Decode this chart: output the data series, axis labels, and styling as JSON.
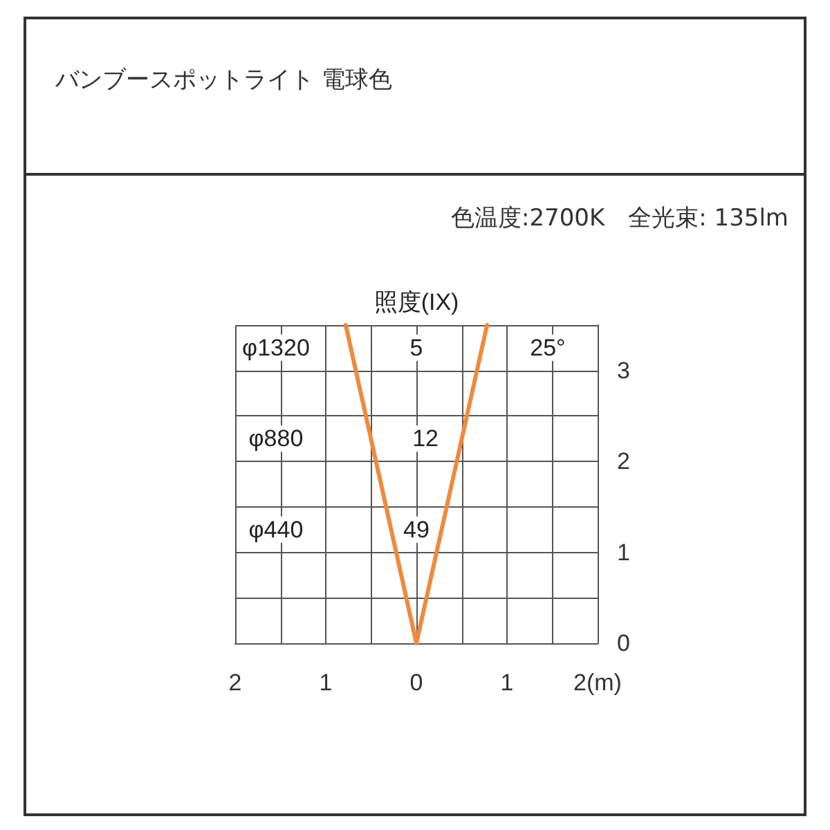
{
  "chart_data": {
    "type": "line",
    "title": "バンブースポットライト 電球色",
    "subtitle": "色温度:2700K　全光束: 135lm",
    "x": [
      -0.78,
      0,
      0.78
    ],
    "series": [
      {
        "color": "#f08a3c",
        "values": [
          3.5,
          0,
          3.5
        ]
      }
    ],
    "xlim": [
      -2,
      2
    ],
    "ylim": [
      0,
      3.5
    ],
    "xticks": [
      {
        "value": -2,
        "label": "2"
      },
      {
        "value": -1.5,
        "label": null
      },
      {
        "value": -1,
        "label": "1"
      },
      {
        "value": -0.5,
        "label": null
      },
      {
        "value": 0,
        "label": "0"
      },
      {
        "value": 0.5,
        "label": null
      },
      {
        "value": 1,
        "label": "1"
      },
      {
        "value": 1.5,
        "label": null
      },
      {
        "value": 2,
        "label": "2(m)"
      }
    ],
    "yticks": [
      0,
      {
        "value": 0.5,
        "label": null
      },
      1,
      {
        "value": 1.5,
        "label": null
      },
      2,
      {
        "value": 2.5,
        "label": null
      },
      3,
      {
        "value": 3.5,
        "label": null
      }
    ],
    "grid": true,
    "marker": "none",
    "line_style": "solid",
    "annotations": [
      "照度(IX)",
      "φ1320",
      "5",
      "25°",
      "φ880",
      "12",
      "φ440",
      "49"
    ]
  }
}
